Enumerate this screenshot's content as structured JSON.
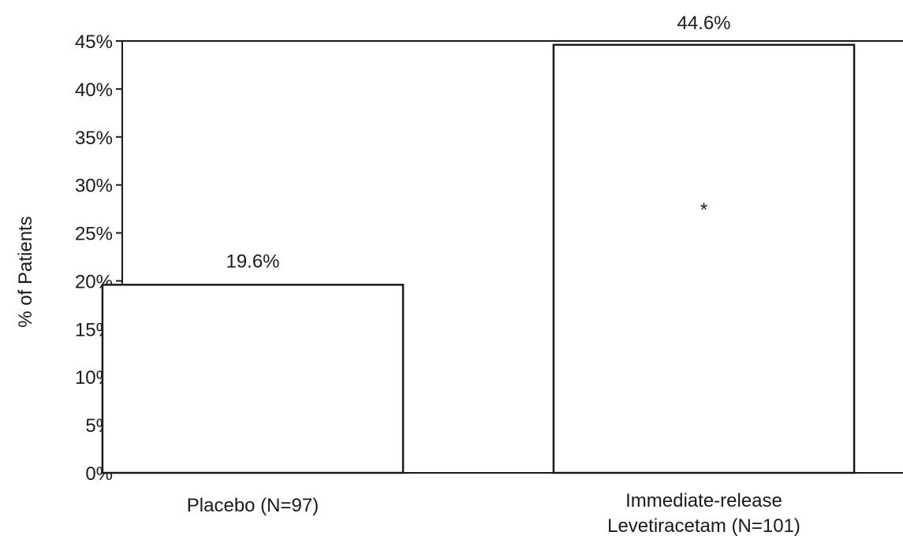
{
  "chart_data": {
    "type": "bar",
    "title": "",
    "xlabel": "",
    "ylabel": "% of Patients",
    "ylim": [
      0,
      45
    ],
    "yticks": [
      0,
      5,
      10,
      15,
      20,
      25,
      30,
      35,
      40,
      45
    ],
    "ytick_labels": [
      "0%",
      "5%",
      "10%",
      "15%",
      "20%",
      "25%",
      "30%",
      "35%",
      "40%",
      "45%"
    ],
    "categories": [
      [
        "Placebo (N=97)"
      ],
      [
        "Immediate-release",
        "Levetiracetam (N=101)"
      ]
    ],
    "values": [
      19.6,
      44.6
    ],
    "value_labels": [
      "19.6%",
      "44.6%"
    ],
    "annotations": [
      {
        "category_index": 1,
        "text": "*"
      }
    ],
    "grid": false,
    "colors": {
      "bar_fill": "#ffffff",
      "bar_stroke": "#1a1a1a",
      "axis": "#1a1a1a"
    }
  }
}
